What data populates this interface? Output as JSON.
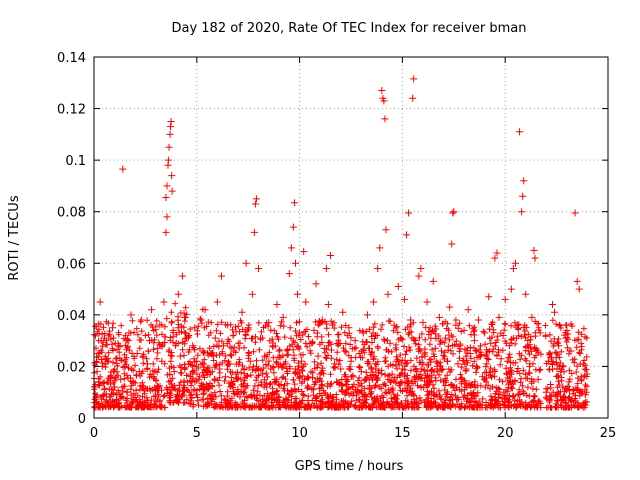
{
  "chart_data": {
    "type": "scatter",
    "title": "Day 182 of 2020, Rate Of TEC Index for receiver bman",
    "xlabel": "GPS time / hours",
    "ylabel": "ROTI / TECUs",
    "xlim": [
      0,
      25
    ],
    "ylim": [
      0,
      0.14
    ],
    "xticks": [
      0,
      5,
      10,
      15,
      20,
      25
    ],
    "xtick_labels": [
      "0",
      "5",
      "10",
      "15",
      "20",
      "25"
    ],
    "yticks": [
      0,
      0.02,
      0.04,
      0.06,
      0.08,
      0.1,
      0.12,
      0.14
    ],
    "ytick_labels": [
      "0",
      "0.02",
      "0.04",
      "0.06",
      "0.08",
      "0.1",
      "0.12",
      "0.14"
    ],
    "grid": true,
    "legend": "none",
    "marker": "plus",
    "color": "#ff0000",
    "series": [
      {
        "values": [
          [
            0.05,
            0.012
          ],
          [
            0.1,
            0.008
          ],
          [
            0.15,
            0.018
          ],
          [
            0.2,
            0.025
          ],
          [
            0.25,
            0.014
          ],
          [
            0.3,
            0.045
          ],
          [
            0.35,
            0.03
          ],
          [
            0.4,
            0.02
          ],
          [
            0.5,
            0.011
          ],
          [
            0.6,
            0.007
          ],
          [
            0.7,
            0.022
          ],
          [
            0.8,
            0.016
          ],
          [
            0.9,
            0.035
          ],
          [
            1.0,
            0.012
          ],
          [
            1.1,
            0.009
          ],
          [
            1.2,
            0.028
          ],
          [
            1.3,
            0.015
          ],
          [
            1.4,
            0.0965
          ],
          [
            1.5,
            0.02
          ],
          [
            1.6,
            0.01
          ],
          [
            1.7,
            0.033
          ],
          [
            1.8,
            0.04
          ],
          [
            1.9,
            0.014
          ],
          [
            2.0,
            0.008
          ],
          [
            2.1,
            0.025
          ],
          [
            2.2,
            0.018
          ],
          [
            2.3,
            0.038
          ],
          [
            2.4,
            0.012
          ],
          [
            2.5,
            0.005
          ],
          [
            2.6,
            0.021
          ],
          [
            2.7,
            0.03
          ],
          [
            2.8,
            0.042
          ],
          [
            2.9,
            0.016
          ],
          [
            3.0,
            0.011
          ],
          [
            3.1,
            0.027
          ],
          [
            3.2,
            0.036
          ],
          [
            3.3,
            0.022
          ],
          [
            3.4,
            0.045
          ],
          [
            3.5,
            0.0855
          ],
          [
            3.55,
            0.09
          ],
          [
            3.6,
            0.098
          ],
          [
            3.62,
            0.1
          ],
          [
            3.65,
            0.105
          ],
          [
            3.7,
            0.11
          ],
          [
            3.72,
            0.113
          ],
          [
            3.75,
            0.115
          ],
          [
            3.78,
            0.094
          ],
          [
            3.8,
            0.088
          ],
          [
            3.5,
            0.072
          ],
          [
            3.55,
            0.078
          ],
          [
            3.85,
            0.034
          ],
          [
            3.9,
            0.018
          ],
          [
            4.0,
            0.029
          ],
          [
            4.1,
            0.048
          ],
          [
            4.2,
            0.024
          ],
          [
            4.3,
            0.055
          ],
          [
            4.4,
            0.039
          ],
          [
            4.5,
            0.031
          ],
          [
            4.6,
            0.021
          ],
          [
            4.7,
            0.017
          ],
          [
            4.8,
            0.028
          ],
          [
            4.9,
            0.035
          ],
          [
            5.0,
            0.022
          ],
          [
            5.1,
            0.015
          ],
          [
            5.2,
            0.038
          ],
          [
            5.3,
            0.026
          ],
          [
            5.4,
            0.042
          ],
          [
            5.5,
            0.018
          ],
          [
            5.6,
            0.012
          ],
          [
            5.7,
            0.009
          ],
          [
            5.8,
            0.024
          ],
          [
            5.9,
            0.031
          ],
          [
            6.0,
            0.045
          ],
          [
            6.1,
            0.019
          ],
          [
            6.2,
            0.055
          ],
          [
            6.3,
            0.028
          ],
          [
            6.4,
            0.016
          ],
          [
            6.5,
            0.036
          ],
          [
            6.6,
            0.021
          ],
          [
            6.7,
            0.013
          ],
          [
            6.8,
            0.026
          ],
          [
            6.9,
            0.017
          ],
          [
            7.0,
            0.011
          ],
          [
            7.1,
            0.029
          ],
          [
            7.2,
            0.041
          ],
          [
            7.3,
            0.019
          ],
          [
            7.4,
            0.06
          ],
          [
            7.5,
            0.035
          ],
          [
            7.6,
            0.022
          ],
          [
            7.7,
            0.048
          ],
          [
            7.8,
            0.072
          ],
          [
            7.85,
            0.083
          ],
          [
            7.9,
            0.085
          ],
          [
            8.0,
            0.058
          ],
          [
            8.1,
            0.031
          ],
          [
            8.2,
            0.017
          ],
          [
            8.3,
            0.024
          ],
          [
            8.4,
            0.012
          ],
          [
            8.5,
            0.037
          ],
          [
            8.6,
            0.019
          ],
          [
            8.7,
            0.028
          ],
          [
            8.8,
            0.015
          ],
          [
            8.9,
            0.044
          ],
          [
            9.0,
            0.026
          ],
          [
            9.1,
            0.013
          ],
          [
            9.2,
            0.039
          ],
          [
            9.3,
            0.021
          ],
          [
            9.4,
            0.018
          ],
          [
            9.5,
            0.056
          ],
          [
            9.6,
            0.066
          ],
          [
            9.7,
            0.074
          ],
          [
            9.75,
            0.0835
          ],
          [
            9.8,
            0.06
          ],
          [
            9.9,
            0.048
          ],
          [
            10.0,
            0.033
          ],
          [
            10.1,
            0.022
          ],
          [
            10.2,
            0.0645
          ],
          [
            10.3,
            0.045
          ],
          [
            10.4,
            0.016
          ],
          [
            10.5,
            0.029
          ],
          [
            10.6,
            0.011
          ],
          [
            10.7,
            0.034
          ],
          [
            10.8,
            0.052
          ],
          [
            10.9,
            0.024
          ],
          [
            11.0,
            0.017
          ],
          [
            11.1,
            0.038
          ],
          [
            11.2,
            0.027
          ],
          [
            11.3,
            0.058
          ],
          [
            11.4,
            0.044
          ],
          [
            11.5,
            0.063
          ],
          [
            11.6,
            0.036
          ],
          [
            11.7,
            0.021
          ],
          [
            11.8,
            0.014
          ],
          [
            11.9,
            0.029
          ],
          [
            12.0,
            0.019
          ],
          [
            12.1,
            0.041
          ],
          [
            12.2,
            0.026
          ],
          [
            12.3,
            0.013
          ],
          [
            12.4,
            0.035
          ],
          [
            12.5,
            0.022
          ],
          [
            12.6,
            0.016
          ],
          [
            12.7,
            0.03
          ],
          [
            12.8,
            0.011
          ],
          [
            12.9,
            0.025
          ],
          [
            13.0,
            0.018
          ],
          [
            13.1,
            0.033
          ],
          [
            13.2,
            0.015
          ],
          [
            13.3,
            0.04
          ],
          [
            13.4,
            0.027
          ],
          [
            13.5,
            0.019
          ],
          [
            13.6,
            0.045
          ],
          [
            13.7,
            0.032
          ],
          [
            13.8,
            0.058
          ],
          [
            13.9,
            0.066
          ],
          [
            14.0,
            0.127
          ],
          [
            14.05,
            0.124
          ],
          [
            14.1,
            0.123
          ],
          [
            14.15,
            0.116
          ],
          [
            14.2,
            0.073
          ],
          [
            14.3,
            0.048
          ],
          [
            14.4,
            0.029
          ],
          [
            14.5,
            0.017
          ],
          [
            14.6,
            0.036
          ],
          [
            14.7,
            0.022
          ],
          [
            14.8,
            0.051
          ],
          [
            14.9,
            0.031
          ],
          [
            15.0,
            0.019
          ],
          [
            15.1,
            0.046
          ],
          [
            15.2,
            0.071
          ],
          [
            15.3,
            0.0795
          ],
          [
            15.4,
            0.038
          ],
          [
            15.5,
            0.124
          ],
          [
            15.55,
            0.1315
          ],
          [
            15.6,
            0.03
          ],
          [
            15.7,
            0.018
          ],
          [
            15.8,
            0.055
          ],
          [
            15.9,
            0.058
          ],
          [
            16.0,
            0.037
          ],
          [
            16.1,
            0.024
          ],
          [
            16.2,
            0.045
          ],
          [
            16.3,
            0.016
          ],
          [
            16.4,
            0.033
          ],
          [
            16.5,
            0.053
          ],
          [
            16.6,
            0.027
          ],
          [
            16.7,
            0.019
          ],
          [
            16.8,
            0.039
          ],
          [
            16.9,
            0.026
          ],
          [
            17.0,
            0.014
          ],
          [
            17.1,
            0.031
          ],
          [
            17.2,
            0.022
          ],
          [
            17.3,
            0.043
          ],
          [
            17.4,
            0.0675
          ],
          [
            17.45,
            0.0795
          ],
          [
            17.5,
            0.08
          ],
          [
            17.6,
            0.036
          ],
          [
            17.7,
            0.021
          ],
          [
            17.8,
            0.028
          ],
          [
            17.9,
            0.015
          ],
          [
            18.0,
            0.034
          ],
          [
            18.1,
            0.019
          ],
          [
            18.2,
            0.042
          ],
          [
            18.3,
            0.025
          ],
          [
            18.4,
            0.013
          ],
          [
            18.5,
            0.03
          ],
          [
            18.6,
            0.02
          ],
          [
            18.7,
            0.038
          ],
          [
            18.8,
            0.024
          ],
          [
            18.9,
            0.016
          ],
          [
            19.0,
            0.033
          ],
          [
            19.1,
            0.021
          ],
          [
            19.2,
            0.047
          ],
          [
            19.3,
            0.029
          ],
          [
            19.4,
            0.018
          ],
          [
            19.5,
            0.062
          ],
          [
            19.6,
            0.064
          ],
          [
            19.7,
            0.039
          ],
          [
            19.8,
            0.023
          ],
          [
            19.9,
            0.032
          ],
          [
            20.0,
            0.046
          ],
          [
            20.1,
            0.017
          ],
          [
            20.2,
            0.028
          ],
          [
            20.3,
            0.05
          ],
          [
            20.4,
            0.058
          ],
          [
            20.5,
            0.06
          ],
          [
            20.6,
            0.036
          ],
          [
            20.7,
            0.111
          ],
          [
            20.8,
            0.08
          ],
          [
            20.85,
            0.086
          ],
          [
            20.9,
            0.092
          ],
          [
            21.0,
            0.048
          ],
          [
            21.1,
            0.03
          ],
          [
            21.2,
            0.021
          ],
          [
            21.3,
            0.039
          ],
          [
            21.4,
            0.065
          ],
          [
            21.45,
            0.062
          ],
          [
            21.5,
            0.027
          ],
          [
            21.6,
            0.015
          ],
          [
            21.7,
            0.033
          ],
          [
            22.0,
            0.01
          ],
          [
            22.1,
            0.022
          ],
          [
            22.2,
            0.013
          ],
          [
            22.3,
            0.044
          ],
          [
            22.4,
            0.041
          ],
          [
            22.5,
            0.009
          ],
          [
            22.6,
            0.028
          ],
          [
            22.7,
            0.018
          ],
          [
            22.8,
            0.012
          ],
          [
            22.9,
            0.007
          ],
          [
            23.0,
            0.034
          ],
          [
            23.1,
            0.014
          ],
          [
            23.2,
            0.026
          ],
          [
            23.3,
            0.011
          ],
          [
            23.4,
            0.0795
          ],
          [
            23.5,
            0.053
          ],
          [
            23.6,
            0.05
          ],
          [
            23.7,
            0.016
          ],
          [
            23.8,
            0.021
          ],
          [
            23.9,
            0.009
          ]
        ]
      }
    ]
  }
}
